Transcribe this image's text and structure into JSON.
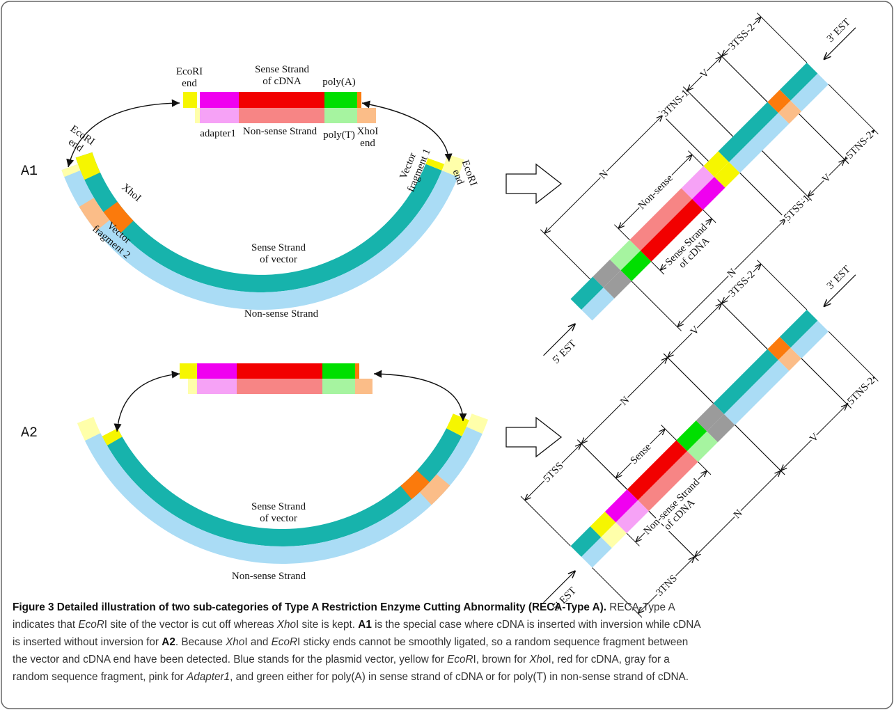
{
  "a1": {
    "label": "A1",
    "labels": [
      [
        "EcoRI",
        "end"
      ],
      [
        "Sense Strand",
        "of cDNA"
      ],
      [
        "poly(A)"
      ],
      [
        "adapter1"
      ],
      [
        "Non-sense Strand"
      ],
      [
        "poly(T)"
      ],
      [
        "XhoI",
        "end"
      ],
      [
        "EcoRI",
        "end"
      ],
      [
        "XhoI"
      ],
      [
        "Vector",
        "fragment 2"
      ],
      [
        "Sense Strand",
        "of vector"
      ],
      [
        "Non-sense Strand"
      ],
      [
        "Vector",
        "fragment 1"
      ],
      [
        "EcoRI",
        "end"
      ]
    ]
  },
  "a2": {
    "label": "A2",
    "labels": [
      [
        "Sense Strand",
        "of vector"
      ],
      [
        "Non-sense Strand"
      ]
    ]
  },
  "a1_map": {
    "end3": "3' EST",
    "end5": "5' EST",
    "upper": [
      "N",
      "3TNS-1",
      "V",
      "3TSS-2"
    ],
    "inner_upper": [
      "Non-sense"
    ],
    "lower": [
      "N",
      "5TSS-1",
      "V",
      "5TNS-2"
    ],
    "inner_lower": [
      "Sense Strand",
      "of cDNA"
    ]
  },
  "a2_map": {
    "end3": "3' EST",
    "end5": "5' EST",
    "upper": [
      "5TSS",
      "N",
      "V",
      "3TSS-2"
    ],
    "inner_upper": [
      "Sense"
    ],
    "lower": [
      "3TNS",
      "N",
      "V",
      "5TNS-2"
    ],
    "inner_lower": [
      "Non-sense Strand",
      "of cDNA"
    ]
  },
  "caption": {
    "lines": [
      [
        {
          "text": "Figure 3 Detailed illustration of two sub-categories of Type A Restriction Enzyme Cutting Abnormality (RECA-Type A).",
          "style": "bold"
        },
        {
          "text": " RECA-Type A"
        }
      ],
      [
        {
          "text": "indicates that "
        },
        {
          "text": "EcoR",
          "style": "italic"
        },
        {
          "text": "I site of the vector is cut off whereas "
        },
        {
          "text": "Xho",
          "style": "italic"
        },
        {
          "text": "I site is kept. "
        },
        {
          "text": "A1",
          "style": "bold"
        },
        {
          "text": " is the special case where cDNA is inserted with inversion while cDNA"
        }
      ],
      [
        {
          "text": "is inserted without inversion for "
        },
        {
          "text": "A2",
          "style": "bold"
        },
        {
          "text": ". Because "
        },
        {
          "text": "Xho",
          "style": "italic"
        },
        {
          "text": "I and "
        },
        {
          "text": "EcoR",
          "style": "italic"
        },
        {
          "text": "I sticky ends cannot be smoothly ligated, so a random sequence fragment between"
        }
      ],
      [
        {
          "text": "the vector and cDNA end have been detected. Blue stands for the plasmid vector, yellow for "
        },
        {
          "text": "EcoR",
          "style": "italic"
        },
        {
          "text": "I, brown for "
        },
        {
          "text": "Xho",
          "style": "italic"
        },
        {
          "text": "I, red for cDNA, gray for a"
        }
      ],
      [
        {
          "text": "random sequence fragment, pink for "
        },
        {
          "text": "Adapter1",
          "style": "italic"
        },
        {
          "text": ", and green either for poly(A) in sense strand of cDNA or for poly(T) in non-sense strand of cDNA."
        }
      ]
    ]
  }
}
